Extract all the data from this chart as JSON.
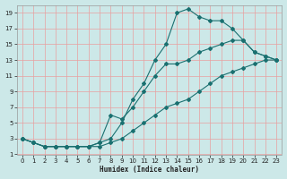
{
  "xlabel": "Humidex (Indice chaleur)",
  "bg_color": "#cce8e8",
  "grid_color": "#e8a0a0",
  "line_color": "#1a7070",
  "xlim": [
    -0.5,
    23.5
  ],
  "ylim": [
    1,
    20
  ],
  "yticks": [
    1,
    3,
    5,
    7,
    9,
    11,
    13,
    15,
    17,
    19
  ],
  "xticks": [
    0,
    1,
    2,
    3,
    4,
    5,
    6,
    7,
    8,
    9,
    10,
    11,
    12,
    13,
    14,
    15,
    16,
    17,
    18,
    19,
    20,
    21,
    22,
    23
  ],
  "line1_x": [
    0,
    1,
    2,
    3,
    4,
    5,
    6,
    7,
    8,
    9,
    10,
    11,
    12,
    13,
    14,
    15,
    16,
    17,
    18,
    19,
    20,
    21,
    22,
    23
  ],
  "line1_y": [
    3,
    2.5,
    2,
    2,
    2,
    2,
    2,
    2,
    2.5,
    3,
    4,
    5,
    6,
    7,
    7.5,
    8,
    9,
    10,
    11,
    11.5,
    12,
    12.5,
    13,
    13
  ],
  "line2_x": [
    0,
    1,
    2,
    3,
    4,
    5,
    6,
    7,
    8,
    9,
    10,
    11,
    12,
    13,
    14,
    15,
    16,
    17,
    18,
    19,
    20,
    21,
    22,
    23
  ],
  "line2_y": [
    3,
    2.5,
    2,
    2,
    2,
    2,
    2,
    2.5,
    3,
    5,
    8,
    10,
    13,
    15,
    19,
    19.5,
    18.5,
    18,
    18,
    17,
    15.5,
    14,
    13.5,
    13
  ],
  "line3_x": [
    0,
    1,
    2,
    3,
    4,
    5,
    6,
    7,
    8,
    9,
    10,
    11,
    12,
    13,
    14,
    15,
    16,
    17,
    18,
    19,
    20,
    21,
    22,
    23
  ],
  "line3_y": [
    3,
    2.5,
    2,
    2,
    2,
    2,
    2,
    2.5,
    6,
    5.5,
    7,
    9,
    11,
    12.5,
    12.5,
    13,
    14,
    14.5,
    15,
    15.5,
    15.5,
    14,
    13.5,
    13
  ]
}
